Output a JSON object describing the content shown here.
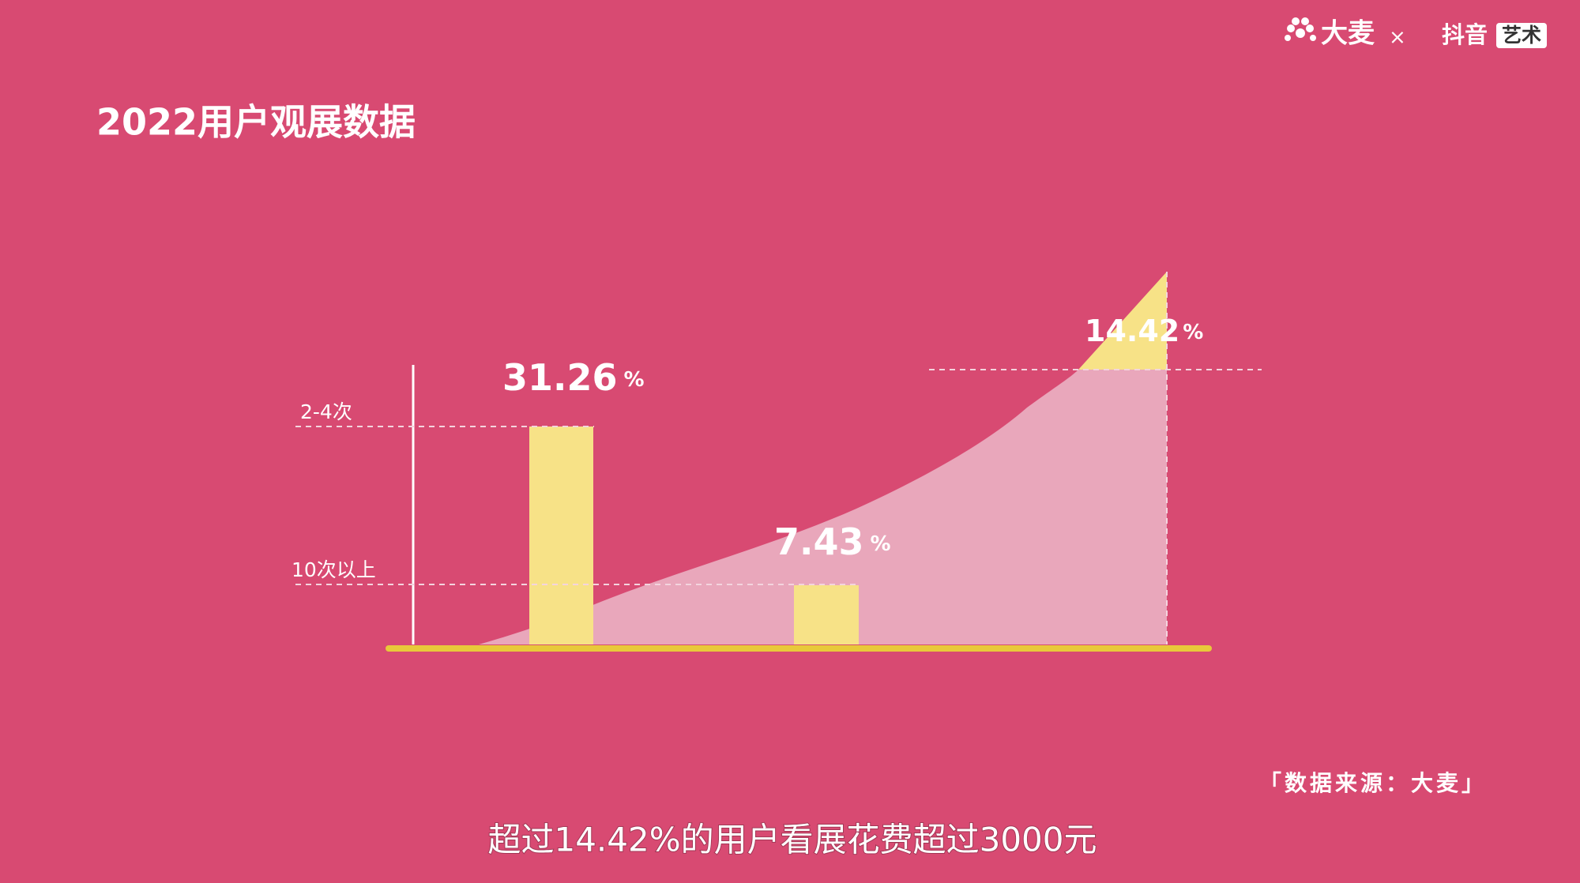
{
  "logo": {
    "brand": "大麦",
    "separator": "×",
    "partner": "抖音",
    "tag": "艺术"
  },
  "header": {
    "title": "2022用户观展数据"
  },
  "graphic": {
    "levels": [
      "2-4次",
      "10次以上"
    ],
    "labels": [
      {
        "value": "31.26",
        "unit": "%"
      },
      {
        "value": "7.43",
        "unit": "%"
      },
      {
        "value": "14.42",
        "unit": "%"
      }
    ]
  },
  "source": "「数据来源：大麦」",
  "subtitle": "超过14.42%的用户看展花费超过3000元"
}
